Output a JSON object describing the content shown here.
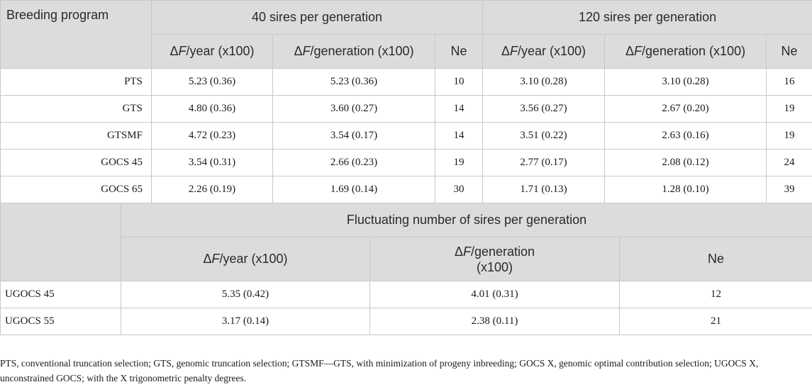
{
  "table1": {
    "col_breeding": "Breeding program",
    "group40": "40 sires per generation",
    "group120": "120 sires per generation",
    "dF_year_suffix": "/year (x100)",
    "dF_gen_suffix": "/generation (x100)",
    "delta": "Δ",
    "F": "F",
    "ne": "Ne",
    "rows": [
      {
        "program": "PTS",
        "y40": "5.23 (0.36)",
        "g40": "5.23 (0.36)",
        "ne40": "10",
        "y120": "3.10 (0.28)",
        "g120": "3.10 (0.28)",
        "ne120": "16"
      },
      {
        "program": "GTS",
        "y40": "4.80 (0.36)",
        "g40": "3.60 (0.27)",
        "ne40": "14",
        "y120": "3.56 (0.27)",
        "g120": "2.67 (0.20)",
        "ne120": "19"
      },
      {
        "program": "GTSMF",
        "y40": "4.72 (0.23)",
        "g40": "3.54 (0.17)",
        "ne40": "14",
        "y120": "3.51 (0.22)",
        "g120": "2.63 (0.16)",
        "ne120": "19"
      },
      {
        "program": "GOCS 45",
        "y40": "3.54 (0.31)",
        "g40": "2.66 (0.23)",
        "ne40": "19",
        "y120": "2.77 (0.17)",
        "g120": "2.08 (0.12)",
        "ne120": "24"
      },
      {
        "program": "GOCS 65",
        "y40": "2.26 (0.19)",
        "g40": "1.69 (0.14)",
        "ne40": "30",
        "y120": "1.71 (0.13)",
        "g120": "1.28 (0.10)",
        "ne120": "39"
      }
    ]
  },
  "table2": {
    "group": "Fluctuating number of sires per generation",
    "dF_year_suffix": "/year (x100)",
    "dF_gen_suffix": "/generation",
    "dF_gen_line2": "(x100)",
    "ne": "Ne",
    "rows": [
      {
        "program": "UGOCS 45",
        "year": "5.35 (0.42)",
        "gen": "4.01 (0.31)",
        "ne": "12"
      },
      {
        "program": "UGOCS 55",
        "year": "3.17 (0.14)",
        "gen": "2.38 (0.11)",
        "ne": "21"
      }
    ]
  },
  "footnote": "PTS, conventional truncation selection; GTS, genomic truncation selection; GTSMF—GTS, with minimization of progeny inbreeding; GOCS X, genomic optimal contribution selection; UGOCS X, unconstrained GOCS; with the X trigonometric penalty degrees."
}
